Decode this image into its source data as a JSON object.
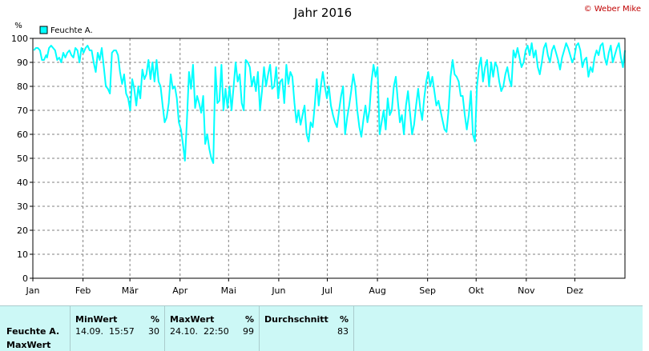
{
  "credit": "© Weber Mike",
  "chart_data": {
    "type": "line",
    "title": "Jahr 2016",
    "ylabel": "%",
    "ylim": [
      0,
      100
    ],
    "yticks": [
      0,
      10,
      20,
      30,
      40,
      50,
      60,
      70,
      80,
      90,
      100
    ],
    "month_labels": [
      "Jan",
      "Feb",
      "Mär",
      "Apr",
      "Mai",
      "Jun",
      "Jul",
      "Aug",
      "Sep",
      "Okt",
      "Nov",
      "Dez"
    ],
    "grid": true,
    "legend_position": "top-left",
    "series_color": "#00ffff",
    "series": [
      {
        "name": "Feuchte A.",
        "x_unit": "day of year",
        "points": [
          [
            1,
            95
          ],
          [
            3,
            96
          ],
          [
            5,
            96
          ],
          [
            7,
            95
          ],
          [
            9,
            91
          ],
          [
            11,
            91
          ],
          [
            13,
            93
          ],
          [
            14,
            92
          ],
          [
            16,
            96
          ],
          [
            18,
            97
          ],
          [
            20,
            96
          ],
          [
            22,
            95
          ],
          [
            24,
            91
          ],
          [
            26,
            92
          ],
          [
            28,
            90
          ],
          [
            30,
            94
          ],
          [
            32,
            92
          ],
          [
            34,
            94
          ],
          [
            36,
            95
          ],
          [
            38,
            93
          ],
          [
            40,
            92
          ],
          [
            42,
            96
          ],
          [
            44,
            95
          ],
          [
            46,
            90
          ],
          [
            48,
            96
          ],
          [
            50,
            94
          ],
          [
            52,
            96
          ],
          [
            54,
            97
          ],
          [
            56,
            95
          ],
          [
            58,
            95
          ],
          [
            60,
            90
          ],
          [
            62,
            86
          ],
          [
            64,
            94
          ],
          [
            66,
            91
          ],
          [
            68,
            96
          ],
          [
            70,
            88
          ],
          [
            72,
            80
          ],
          [
            74,
            79
          ],
          [
            76,
            77
          ],
          [
            78,
            94
          ],
          [
            80,
            95
          ],
          [
            82,
            95
          ],
          [
            84,
            93
          ],
          [
            86,
            86
          ],
          [
            88,
            81
          ],
          [
            90,
            85
          ],
          [
            92,
            77
          ],
          [
            94,
            75
          ],
          [
            96,
            70
          ],
          [
            98,
            83
          ],
          [
            100,
            79
          ],
          [
            102,
            72
          ],
          [
            104,
            80
          ],
          [
            106,
            75
          ],
          [
            108,
            87
          ],
          [
            110,
            83
          ],
          [
            112,
            85
          ],
          [
            114,
            91
          ],
          [
            116,
            83
          ],
          [
            118,
            90
          ],
          [
            120,
            82
          ],
          [
            122,
            91
          ],
          [
            124,
            82
          ],
          [
            126,
            80
          ],
          [
            128,
            72
          ],
          [
            130,
            65
          ],
          [
            132,
            67
          ],
          [
            134,
            73
          ],
          [
            136,
            85
          ],
          [
            138,
            79
          ],
          [
            140,
            80
          ],
          [
            142,
            75
          ],
          [
            144,
            65
          ],
          [
            146,
            62
          ],
          [
            148,
            56
          ],
          [
            150,
            49
          ],
          [
            152,
            66
          ],
          [
            154,
            86
          ],
          [
            156,
            79
          ],
          [
            158,
            89
          ],
          [
            160,
            71
          ],
          [
            162,
            76
          ],
          [
            164,
            73
          ],
          [
            166,
            69
          ],
          [
            168,
            76
          ],
          [
            170,
            56
          ],
          [
            172,
            60
          ],
          [
            174,
            54
          ],
          [
            176,
            50
          ],
          [
            178,
            48
          ],
          [
            180,
            88
          ],
          [
            182,
            73
          ],
          [
            184,
            74
          ],
          [
            186,
            89
          ],
          [
            188,
            70
          ],
          [
            190,
            79
          ],
          [
            192,
            71
          ],
          [
            194,
            80
          ],
          [
            196,
            70
          ],
          [
            198,
            80
          ],
          [
            200,
            90
          ],
          [
            202,
            82
          ],
          [
            204,
            85
          ],
          [
            206,
            73
          ],
          [
            208,
            70
          ],
          [
            210,
            91
          ],
          [
            212,
            90
          ],
          [
            214,
            88
          ],
          [
            216,
            80
          ],
          [
            218,
            84
          ],
          [
            220,
            78
          ],
          [
            222,
            86
          ],
          [
            224,
            70
          ],
          [
            226,
            78
          ],
          [
            228,
            88
          ],
          [
            230,
            80
          ],
          [
            232,
            85
          ],
          [
            234,
            89
          ],
          [
            236,
            79
          ],
          [
            238,
            80
          ],
          [
            240,
            88
          ],
          [
            242,
            75
          ],
          [
            244,
            82
          ],
          [
            246,
            83
          ],
          [
            248,
            73
          ],
          [
            250,
            89
          ],
          [
            252,
            81
          ],
          [
            254,
            86
          ],
          [
            256,
            84
          ],
          [
            258,
            73
          ],
          [
            260,
            65
          ],
          [
            262,
            70
          ],
          [
            264,
            64
          ],
          [
            266,
            68
          ],
          [
            268,
            72
          ],
          [
            270,
            60
          ],
          [
            272,
            57
          ],
          [
            274,
            65
          ],
          [
            276,
            63
          ],
          [
            278,
            72
          ],
          [
            280,
            83
          ],
          [
            282,
            72
          ],
          [
            284,
            80
          ],
          [
            286,
            86
          ],
          [
            288,
            80
          ],
          [
            290,
            75
          ],
          [
            292,
            80
          ],
          [
            294,
            72
          ],
          [
            296,
            68
          ],
          [
            298,
            65
          ],
          [
            300,
            63
          ],
          [
            302,
            70
          ],
          [
            304,
            76
          ],
          [
            306,
            80
          ],
          [
            308,
            60
          ],
          [
            310,
            67
          ],
          [
            312,
            72
          ],
          [
            314,
            78
          ],
          [
            316,
            85
          ],
          [
            318,
            80
          ],
          [
            320,
            70
          ],
          [
            322,
            63
          ],
          [
            324,
            59
          ],
          [
            326,
            66
          ],
          [
            328,
            72
          ],
          [
            330,
            65
          ],
          [
            332,
            70
          ],
          [
            334,
            82
          ],
          [
            336,
            89
          ],
          [
            338,
            84
          ],
          [
            340,
            88
          ],
          [
            342,
            60
          ],
          [
            344,
            65
          ],
          [
            346,
            70
          ],
          [
            348,
            62
          ],
          [
            350,
            75
          ],
          [
            352,
            68
          ],
          [
            354,
            70
          ],
          [
            356,
            80
          ],
          [
            358,
            84
          ],
          [
            360,
            74
          ],
          [
            362,
            65
          ],
          [
            364,
            68
          ],
          [
            366,
            60
          ],
          [
            368,
            72
          ],
          [
            370,
            78
          ],
          [
            372,
            69
          ],
          [
            374,
            60
          ],
          [
            376,
            64
          ],
          [
            378,
            72
          ],
          [
            380,
            79
          ],
          [
            382,
            71
          ],
          [
            384,
            66
          ],
          [
            386,
            75
          ],
          [
            388,
            82
          ],
          [
            390,
            86
          ],
          [
            392,
            80
          ],
          [
            394,
            84
          ],
          [
            396,
            78
          ],
          [
            398,
            72
          ],
          [
            400,
            74
          ],
          [
            402,
            70
          ],
          [
            404,
            66
          ],
          [
            406,
            62
          ],
          [
            408,
            61
          ],
          [
            410,
            70
          ],
          [
            412,
            84
          ],
          [
            414,
            91
          ],
          [
            416,
            85
          ],
          [
            418,
            84
          ],
          [
            420,
            82
          ],
          [
            422,
            76
          ],
          [
            424,
            76
          ],
          [
            426,
            68
          ],
          [
            428,
            62
          ],
          [
            430,
            68
          ],
          [
            432,
            78
          ],
          [
            434,
            60
          ],
          [
            436,
            57
          ],
          [
            438,
            80
          ],
          [
            440,
            88
          ],
          [
            442,
            92
          ],
          [
            444,
            82
          ],
          [
            446,
            88
          ],
          [
            448,
            91
          ],
          [
            450,
            80
          ],
          [
            452,
            90
          ],
          [
            454,
            84
          ],
          [
            456,
            90
          ],
          [
            458,
            88
          ],
          [
            460,
            82
          ],
          [
            462,
            78
          ],
          [
            464,
            80
          ],
          [
            466,
            85
          ],
          [
            468,
            88
          ],
          [
            470,
            83
          ],
          [
            472,
            80
          ],
          [
            474,
            95
          ],
          [
            476,
            92
          ],
          [
            478,
            96
          ],
          [
            480,
            92
          ],
          [
            482,
            88
          ],
          [
            484,
            90
          ],
          [
            486,
            95
          ],
          [
            488,
            97
          ],
          [
            490,
            93
          ],
          [
            492,
            98
          ],
          [
            494,
            92
          ],
          [
            496,
            95
          ],
          [
            498,
            88
          ],
          [
            500,
            85
          ],
          [
            502,
            90
          ],
          [
            504,
            96
          ],
          [
            506,
            98
          ],
          [
            508,
            93
          ],
          [
            510,
            90
          ],
          [
            512,
            95
          ],
          [
            514,
            97
          ],
          [
            516,
            94
          ],
          [
            518,
            91
          ],
          [
            520,
            87
          ],
          [
            522,
            92
          ],
          [
            524,
            95
          ],
          [
            526,
            98
          ],
          [
            528,
            96
          ],
          [
            530,
            93
          ],
          [
            532,
            90
          ],
          [
            534,
            92
          ],
          [
            536,
            97
          ],
          [
            538,
            98
          ],
          [
            540,
            95
          ],
          [
            542,
            88
          ],
          [
            544,
            91
          ],
          [
            546,
            92
          ],
          [
            548,
            84
          ],
          [
            550,
            88
          ],
          [
            552,
            86
          ],
          [
            554,
            92
          ],
          [
            556,
            95
          ],
          [
            558,
            93
          ],
          [
            560,
            97
          ],
          [
            562,
            98
          ],
          [
            564,
            92
          ],
          [
            566,
            89
          ],
          [
            568,
            94
          ],
          [
            570,
            97
          ],
          [
            572,
            90
          ],
          [
            574,
            93
          ],
          [
            576,
            96
          ],
          [
            578,
            98
          ],
          [
            580,
            92
          ],
          [
            582,
            88
          ],
          [
            584,
            95
          ]
        ]
      }
    ]
  },
  "stats_table": {
    "row_label_1": "Feuchte A.",
    "row_label_2": "MaxWert",
    "min": {
      "header": "MinWert",
      "unit": "%",
      "date": "14.09.",
      "time": "15:57",
      "value": "30"
    },
    "max": {
      "header": "MaxWert",
      "unit": "%",
      "date": "24.10.",
      "time": "22:50",
      "value": "99"
    },
    "avg": {
      "header": "Durchschnitt",
      "unit": "%",
      "value": "83"
    }
  }
}
